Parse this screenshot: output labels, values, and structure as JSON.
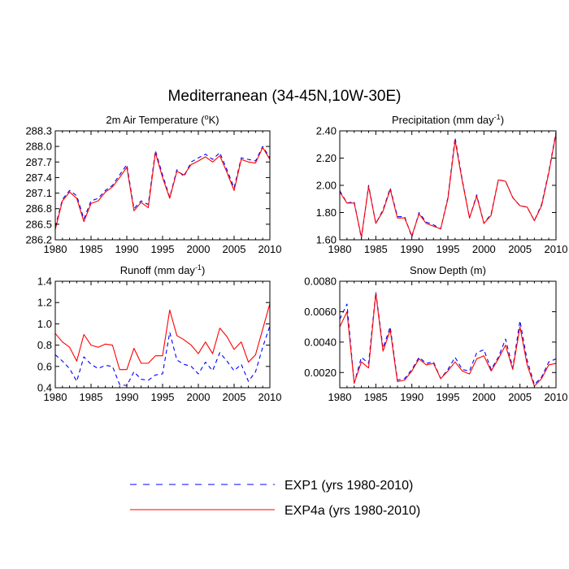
{
  "main_title": "Mediterranean (34-45N,10W-30E)",
  "colors": {
    "exp1": "#0000ff",
    "exp4a": "#ff0000"
  },
  "legend": {
    "exp1_label": "EXP1 (yrs 1980-2010)",
    "exp4a_label": "EXP4a (yrs 1980-2010)"
  },
  "chart_data": [
    {
      "type": "line",
      "title": "2m Air Temperature (°K)",
      "title_main": "2m Air Temperature (",
      "title_sup": "o",
      "title_end": "K)",
      "xlabel": "",
      "ylabel": "",
      "xlim": [
        1980,
        2010
      ],
      "ylim": [
        286.2,
        288.3
      ],
      "x_ticks": [
        "1980",
        "1985",
        "1990",
        "1995",
        "2000",
        "2005",
        "2010"
      ],
      "y_ticks": [
        "286.2",
        "286.5",
        "286.8",
        "287.1",
        "287.4",
        "287.7",
        "288.0",
        "288.3"
      ],
      "x": [
        1980,
        1981,
        1982,
        1983,
        1984,
        1985,
        1986,
        1987,
        1988,
        1989,
        1990,
        1991,
        1992,
        1993,
        1994,
        1995,
        1996,
        1997,
        1998,
        1999,
        2000,
        2001,
        2002,
        2003,
        2004,
        2005,
        2006,
        2007,
        2008,
        2009,
        2010
      ],
      "series": [
        {
          "name": "EXP1 (yrs 1980-2010)",
          "values": [
            286.45,
            286.98,
            287.15,
            287.05,
            286.6,
            286.95,
            287.0,
            287.15,
            287.25,
            287.45,
            287.65,
            286.8,
            286.95,
            286.88,
            287.92,
            287.45,
            287.02,
            287.55,
            287.42,
            287.7,
            287.78,
            287.85,
            287.75,
            287.88,
            287.55,
            287.2,
            287.78,
            287.75,
            287.72,
            288.0,
            287.78
          ]
        },
        {
          "name": "EXP4a (yrs 1980-2010)",
          "values": [
            286.4,
            286.95,
            287.12,
            287.0,
            286.55,
            286.9,
            286.95,
            287.12,
            287.22,
            287.4,
            287.6,
            286.76,
            286.92,
            286.82,
            287.88,
            287.4,
            287.0,
            287.52,
            287.45,
            287.65,
            287.72,
            287.8,
            287.7,
            287.82,
            287.5,
            287.15,
            287.75,
            287.7,
            287.68,
            287.98,
            287.75
          ]
        }
      ]
    },
    {
      "type": "line",
      "title": "Precipitation (mm day-1)",
      "title_main": "Precipitation (mm day",
      "title_sup": "-1",
      "title_end": ")",
      "xlabel": "",
      "ylabel": "",
      "xlim": [
        1980,
        2010
      ],
      "ylim": [
        1.6,
        2.4
      ],
      "x_ticks": [
        "1980",
        "1985",
        "1990",
        "1995",
        "2000",
        "2005",
        "2010"
      ],
      "y_ticks": [
        "1.60",
        "1.80",
        "2.00",
        "2.20",
        "2.40"
      ],
      "x": [
        1980,
        1981,
        1982,
        1983,
        1984,
        1985,
        1986,
        1987,
        1988,
        1989,
        1990,
        1991,
        1992,
        1993,
        1994,
        1995,
        1996,
        1997,
        1998,
        1999,
        2000,
        2001,
        2002,
        2003,
        2004,
        2005,
        2006,
        2007,
        2008,
        2009,
        2010
      ],
      "series": [
        {
          "name": "EXP1 (yrs 1980-2010)",
          "values": [
            1.96,
            1.87,
            1.88,
            1.61,
            2.0,
            1.72,
            1.82,
            1.98,
            1.77,
            1.77,
            1.62,
            1.8,
            1.73,
            1.71,
            1.68,
            1.91,
            2.35,
            2.04,
            1.76,
            1.93,
            1.72,
            1.79,
            2.04,
            2.03,
            1.91,
            1.85,
            1.84,
            1.74,
            1.86,
            2.1,
            2.39
          ]
        },
        {
          "name": "EXP4a (yrs 1980-2010)",
          "values": [
            1.95,
            1.87,
            1.87,
            1.62,
            1.99,
            1.72,
            1.81,
            1.97,
            1.76,
            1.76,
            1.63,
            1.79,
            1.72,
            1.7,
            1.68,
            1.9,
            2.33,
            2.03,
            1.76,
            1.92,
            1.72,
            1.78,
            2.04,
            2.03,
            1.91,
            1.85,
            1.84,
            1.74,
            1.85,
            2.09,
            2.38
          ]
        }
      ]
    },
    {
      "type": "line",
      "title": "Runoff (mm day-1)",
      "title_main": "Runoff (mm day",
      "title_sup": "-1",
      "title_end": ")",
      "xlabel": "",
      "ylabel": "",
      "xlim": [
        1980,
        2010
      ],
      "ylim": [
        0.4,
        1.4
      ],
      "x_ticks": [
        "1980",
        "1985",
        "1990",
        "1995",
        "2000",
        "2005",
        "2010"
      ],
      "y_ticks": [
        "0.4",
        "0.6",
        "0.8",
        "1.0",
        "1.2",
        "1.4"
      ],
      "x": [
        1980,
        1981,
        1982,
        1983,
        1984,
        1985,
        1986,
        1987,
        1988,
        1989,
        1990,
        1991,
        1992,
        1993,
        1994,
        1995,
        1996,
        1997,
        1998,
        1999,
        2000,
        2001,
        2002,
        2003,
        2004,
        2005,
        2006,
        2007,
        2008,
        2009,
        2010
      ],
      "series": [
        {
          "name": "EXP1 (yrs 1980-2010)",
          "values": [
            0.71,
            0.65,
            0.58,
            0.46,
            0.69,
            0.62,
            0.58,
            0.61,
            0.6,
            0.43,
            0.42,
            0.55,
            0.48,
            0.47,
            0.52,
            0.53,
            0.92,
            0.66,
            0.62,
            0.6,
            0.53,
            0.64,
            0.56,
            0.73,
            0.65,
            0.56,
            0.62,
            0.46,
            0.55,
            0.78,
            0.98
          ]
        },
        {
          "name": "EXP4a (yrs 1980-2010)",
          "values": [
            0.91,
            0.83,
            0.78,
            0.65,
            0.9,
            0.8,
            0.78,
            0.81,
            0.8,
            0.57,
            0.57,
            0.77,
            0.63,
            0.63,
            0.7,
            0.7,
            1.13,
            0.89,
            0.85,
            0.8,
            0.72,
            0.83,
            0.72,
            0.96,
            0.88,
            0.76,
            0.83,
            0.64,
            0.71,
            0.95,
            1.19
          ]
        }
      ]
    },
    {
      "type": "line",
      "title": "Snow Depth (m)",
      "title_main": "Snow Depth (m)",
      "title_sup": "",
      "title_end": "",
      "xlabel": "",
      "ylabel": "",
      "xlim": [
        1980,
        2010
      ],
      "ylim": [
        0.001,
        0.008
      ],
      "y_tick_values": [
        0.002,
        0.004,
        0.006,
        0.008
      ],
      "x_ticks": [
        "1980",
        "1985",
        "1990",
        "1995",
        "2000",
        "2005",
        "2010"
      ],
      "y_ticks": [
        "0.0020",
        "0.0040",
        "0.0060",
        "0.0080"
      ],
      "x": [
        1980,
        1981,
        1982,
        1983,
        1984,
        1985,
        1986,
        1987,
        1988,
        1989,
        1990,
        1991,
        1992,
        1993,
        1994,
        1995,
        1996,
        1997,
        1998,
        1999,
        2000,
        2001,
        2002,
        2003,
        2004,
        2005,
        2006,
        2007,
        2008,
        2009,
        2010
      ],
      "series": [
        {
          "name": "EXP1 (yrs 1980-2010)",
          "values": [
            0.0055,
            0.0065,
            0.0013,
            0.003,
            0.0026,
            0.0073,
            0.0036,
            0.005,
            0.0015,
            0.0016,
            0.0022,
            0.003,
            0.0026,
            0.0027,
            0.0016,
            0.0022,
            0.003,
            0.0022,
            0.0021,
            0.0033,
            0.0035,
            0.0022,
            0.003,
            0.0042,
            0.0023,
            0.0054,
            0.0028,
            0.0012,
            0.0017,
            0.0027,
            0.0029
          ]
        },
        {
          "name": "EXP4a (yrs 1980-2010)",
          "values": [
            0.005,
            0.006,
            0.0013,
            0.0027,
            0.0023,
            0.0072,
            0.0034,
            0.0048,
            0.0014,
            0.0015,
            0.0021,
            0.0029,
            0.0025,
            0.0026,
            0.0016,
            0.0021,
            0.0027,
            0.0021,
            0.0019,
            0.0029,
            0.0031,
            0.0021,
            0.0029,
            0.0038,
            0.0022,
            0.005,
            0.0025,
            0.0011,
            0.0016,
            0.0025,
            0.0026
          ]
        }
      ]
    }
  ]
}
